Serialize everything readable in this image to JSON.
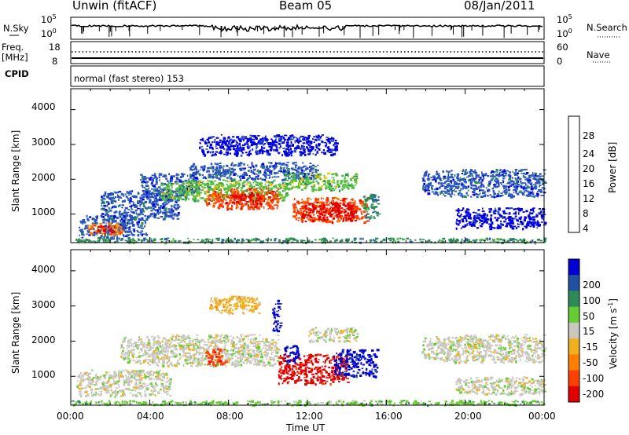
{
  "header": {
    "station": "Unwin (fitACF)",
    "beam": "Beam 05",
    "date": "08/Jan/2011"
  },
  "nsky_panel": {
    "left_label": "N.Sky",
    "left_ticks": [
      "10^5",
      "10^0"
    ],
    "right_ticks": [
      "10^5",
      "10^0"
    ],
    "right_label": "N.Search"
  },
  "freq_panel": {
    "left_label_line1": "Freq.",
    "left_label_line2": "[MHz]",
    "left_ticks": [
      "18",
      "8"
    ],
    "right_ticks": [
      "60",
      "0"
    ],
    "right_label": "Nave"
  },
  "cpid_panel": {
    "label": "CPID",
    "text": "normal (fast stereo) 153"
  },
  "time_axis": {
    "tick_labels": [
      "00:00",
      "04:00",
      "08:00",
      "12:00",
      "16:00",
      "20:00",
      "00:00"
    ],
    "label": "Time UT"
  },
  "chart_data": [
    {
      "type": "heatmap",
      "panel": "power",
      "ylabel": "Slant Range [km]",
      "yticks": [
        1000,
        2000,
        3000,
        4000
      ],
      "ylim": [
        180,
        4600
      ],
      "xlim_hours": [
        0,
        24
      ],
      "colorbar": {
        "label": "Power [dB]",
        "ticks": [
          "4",
          "8",
          "12",
          "16",
          "20",
          "24",
          "28"
        ],
        "colors": [
          "#0000e0",
          "#2a55c0",
          "#2e8b57",
          "#55c040",
          "#f0c000",
          "#ff8000",
          "#ff4000",
          "#e00000"
        ]
      },
      "regions": [
        {
          "t0": 0.4,
          "t1": 3.8,
          "r0": 300,
          "r1": 1000,
          "level": 1
        },
        {
          "t0": 0.8,
          "t1": 2.6,
          "r0": 420,
          "r1": 760,
          "level": 5
        },
        {
          "t0": 1.3,
          "t1": 2.2,
          "r0": 470,
          "r1": 690,
          "level": 7
        },
        {
          "t0": 1.5,
          "t1": 5.5,
          "r0": 880,
          "r1": 1700,
          "level": 1
        },
        {
          "t0": 3.5,
          "t1": 6.5,
          "r0": 1500,
          "r1": 2200,
          "level": 1
        },
        {
          "t0": 4.5,
          "t1": 11.0,
          "r0": 1400,
          "r1": 2000,
          "level": 3
        },
        {
          "t0": 6.8,
          "t1": 10.5,
          "r0": 1150,
          "r1": 1750,
          "level": 6
        },
        {
          "t0": 8.0,
          "t1": 9.8,
          "r0": 1300,
          "r1": 1600,
          "level": 7
        },
        {
          "t0": 6.0,
          "t1": 12.5,
          "r0": 2000,
          "r1": 2500,
          "level": 1
        },
        {
          "t0": 10.8,
          "t1": 14.5,
          "r0": 1700,
          "r1": 2200,
          "level": 3
        },
        {
          "t0": 11.2,
          "t1": 15.0,
          "r0": 780,
          "r1": 1500,
          "level": 6
        },
        {
          "t0": 11.7,
          "t1": 14.4,
          "r0": 820,
          "r1": 1350,
          "level": 7
        },
        {
          "t0": 14.8,
          "t1": 15.6,
          "r0": 900,
          "r1": 1600,
          "level": 2
        },
        {
          "t0": 6.5,
          "t1": 13.5,
          "r0": 2700,
          "r1": 3300,
          "level": 0
        },
        {
          "t0": 17.8,
          "t1": 24.0,
          "r0": 1500,
          "r1": 2300,
          "level": 1
        },
        {
          "t0": 19.5,
          "t1": 24.0,
          "r0": 600,
          "r1": 1200,
          "level": 0
        },
        {
          "t0": 0.0,
          "t1": 24.0,
          "r0": 200,
          "r1": 330,
          "level": 2
        }
      ]
    },
    {
      "type": "heatmap",
      "panel": "velocity",
      "ylabel": "Slant Range [km]",
      "yticks": [
        1000,
        2000,
        3000,
        4000
      ],
      "ylim": [
        180,
        4600
      ],
      "xlim_hours": [
        0,
        24
      ],
      "colorbar": {
        "label": "Velocity [m s^-1]",
        "ticks": [
          "200",
          "100",
          "50",
          "15",
          "-15",
          "-50",
          "-100",
          "-200"
        ],
        "colors": [
          "#0000d0",
          "#2050a0",
          "#2e8b57",
          "#66cc33",
          "#c8c8c0",
          "#f0b020",
          "#ff8000",
          "#ff4000",
          "#e00000"
        ]
      },
      "regions": [
        {
          "t0": 0.3,
          "t1": 5.0,
          "r0": 450,
          "r1": 1200,
          "level": 4
        },
        {
          "t0": 2.5,
          "t1": 10.5,
          "r0": 1300,
          "r1": 2200,
          "level": 4
        },
        {
          "t0": 6.8,
          "t1": 7.8,
          "r0": 1300,
          "r1": 1800,
          "level": 7
        },
        {
          "t0": 10.5,
          "t1": 14.0,
          "r0": 800,
          "r1": 1650,
          "level": 8
        },
        {
          "t0": 13.3,
          "t1": 15.5,
          "r0": 1000,
          "r1": 1800,
          "level": 0
        },
        {
          "t0": 10.8,
          "t1": 11.5,
          "r0": 1400,
          "r1": 1900,
          "level": 0
        },
        {
          "t0": 7.0,
          "t1": 9.5,
          "r0": 2800,
          "r1": 3300,
          "level": 5
        },
        {
          "t0": 10.2,
          "t1": 10.6,
          "r0": 2300,
          "r1": 3200,
          "level": 0
        },
        {
          "t0": 12.0,
          "t1": 14.5,
          "r0": 2000,
          "r1": 2400,
          "level": 4
        },
        {
          "t0": 17.8,
          "t1": 24.0,
          "r0": 1400,
          "r1": 2200,
          "level": 4
        },
        {
          "t0": 19.5,
          "t1": 24.0,
          "r0": 500,
          "r1": 1000,
          "level": 4
        },
        {
          "t0": 0.0,
          "t1": 24.0,
          "r0": 200,
          "r1": 330,
          "level": 3
        }
      ]
    }
  ]
}
